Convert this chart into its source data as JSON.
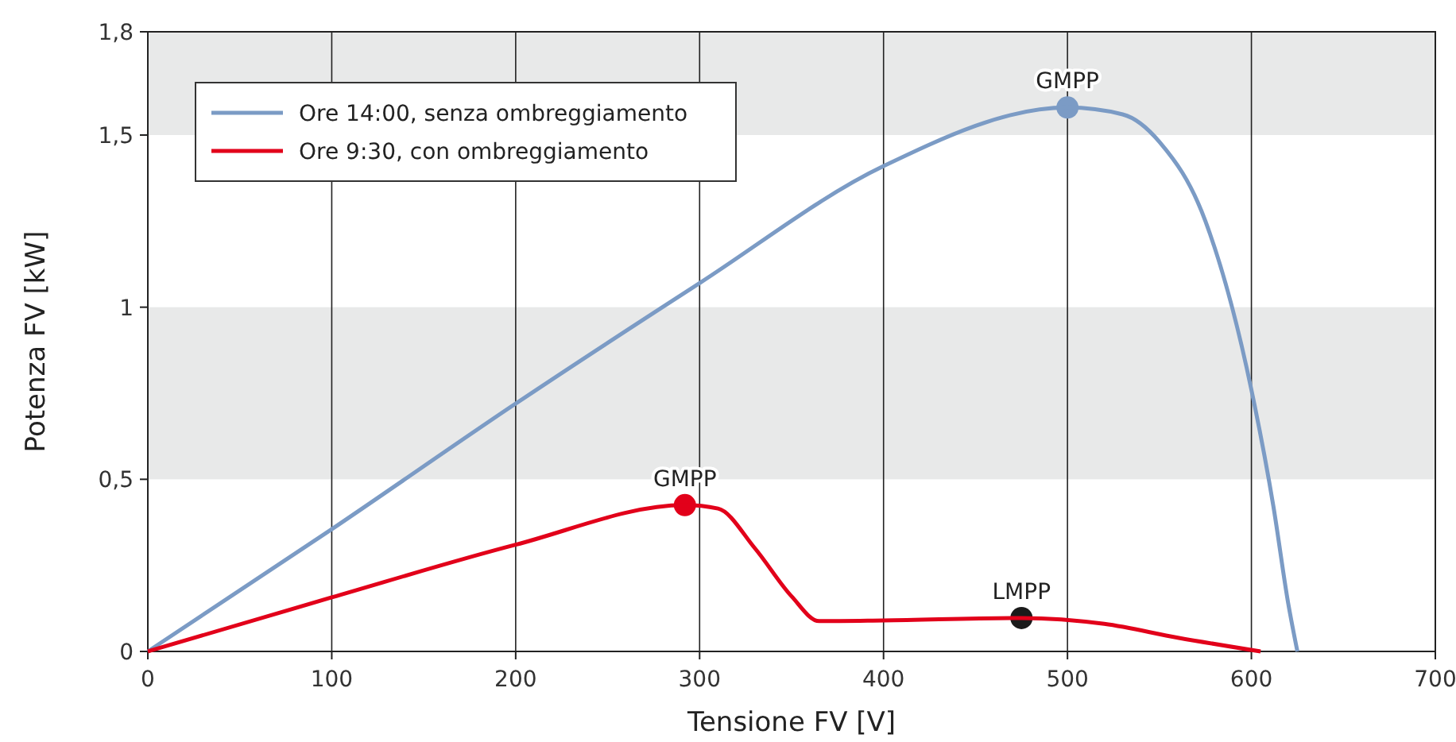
{
  "chart_data": {
    "type": "line",
    "xlabel": "Tensione FV [V]",
    "ylabel": "Potenza FV [kW]",
    "xlim": [
      0,
      700
    ],
    "xticks": [
      0,
      100,
      200,
      300,
      400,
      500,
      600,
      700
    ],
    "ylim": [
      0,
      1.8
    ],
    "yticks": [
      0,
      {
        "value": 0.5,
        "label": "0,5"
      },
      1,
      {
        "value": 1.5,
        "label": "1,5"
      },
      {
        "value": 1.8,
        "label": "1,8"
      }
    ],
    "grid": "x",
    "legend": "top left",
    "bands": [
      {
        "axis": "y",
        "from": 0.5,
        "to": 1,
        "color": "#e8e9e9"
      },
      {
        "axis": "y",
        "from": 1.5,
        "to": 1.8,
        "color": "#e8e9e9"
      }
    ],
    "series": [
      {
        "name": "Ore 14:00, senza ombreggiamento",
        "color": "#7b9bc5",
        "x": [
          0,
          100,
          200,
          300,
          400,
          500,
          530,
          550,
          575,
          600,
          612,
          620,
          625
        ],
        "values": [
          0,
          0.355,
          0.72,
          1.07,
          1.41,
          1.58,
          1.56,
          1.48,
          1.25,
          0.76,
          0.42,
          0.14,
          0
        ]
      },
      {
        "name": "Ore 9:30, con ombreggiamento",
        "color": "#e2001a",
        "x": [
          0,
          100,
          200,
          292,
          310,
          330,
          350,
          365,
          400,
          475,
          520,
          560,
          605
        ],
        "values": [
          0,
          0.157,
          0.31,
          0.425,
          0.415,
          0.3,
          0.16,
          0.088,
          0.09,
          0.097,
          0.08,
          0.04,
          0
        ]
      },
      {
        "type": "scatter",
        "marker": "circle",
        "x": [
          500,
          292,
          475
        ],
        "values": [
          1.58,
          0.425,
          0.097
        ],
        "colors": [
          "#7b9bc5",
          "#e2001a",
          "#1a1a1a"
        ]
      }
    ],
    "annotations": [
      {
        "text": "GMPP",
        "x": 500,
        "y": 1.58
      },
      {
        "text": "GMPP",
        "x": 292,
        "y": 0.425
      },
      {
        "text": "LMPP",
        "x": 475,
        "y": 0.097
      }
    ]
  }
}
